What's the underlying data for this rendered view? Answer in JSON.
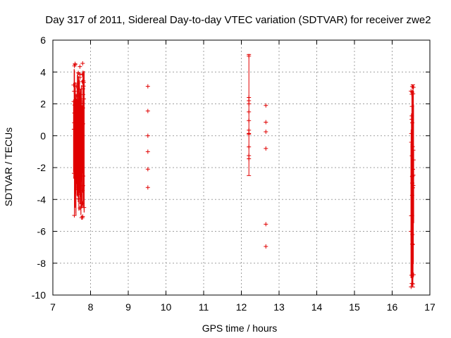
{
  "chart_data": {
    "type": "scatter",
    "title": "Day 317 of 2011, Sidereal Day-to-day VTEC variation (SDTVAR) for receiver zwe2",
    "xlabel": "GPS time / hours",
    "ylabel": "SDTVAR / TECUs",
    "xlim": [
      7,
      17
    ],
    "ylim": [
      -10,
      6
    ],
    "xticks": [
      7,
      8,
      9,
      10,
      11,
      12,
      13,
      14,
      15,
      16,
      17
    ],
    "yticks": [
      -10,
      -8,
      -6,
      -4,
      -2,
      0,
      2,
      4,
      6
    ],
    "grid": true,
    "series_color": "#e00000",
    "clusters": [
      {
        "x_start": 7.55,
        "x_end": 7.83,
        "y_min": -5.2,
        "y_max": 4.6
      },
      {
        "x_start": 16.5,
        "x_end": 16.57,
        "y_min": -9.5,
        "y_max": 3.2
      }
    ],
    "error_bars": [
      {
        "x": 12.2,
        "y_low": -2.5,
        "y_high": 5.1
      },
      {
        "x": 16.55,
        "y_low": -9.5,
        "y_high": 3.2
      }
    ],
    "points": [
      {
        "x": 9.52,
        "y": 3.1
      },
      {
        "x": 9.52,
        "y": 1.55
      },
      {
        "x": 9.52,
        "y": 0.0
      },
      {
        "x": 9.52,
        "y": -1.0
      },
      {
        "x": 9.52,
        "y": -2.1
      },
      {
        "x": 9.52,
        "y": -3.25
      },
      {
        "x": 12.2,
        "y": 5.0
      },
      {
        "x": 12.2,
        "y": 2.4
      },
      {
        "x": 12.2,
        "y": 2.2
      },
      {
        "x": 12.2,
        "y": 2.0
      },
      {
        "x": 12.2,
        "y": 1.5
      },
      {
        "x": 12.2,
        "y": 0.95
      },
      {
        "x": 12.2,
        "y": 0.35
      },
      {
        "x": 12.2,
        "y": 0.15
      },
      {
        "x": 12.2,
        "y": 0.1
      },
      {
        "x": 12.2,
        "y": -0.7
      },
      {
        "x": 12.2,
        "y": -1.25
      },
      {
        "x": 12.2,
        "y": -1.45
      },
      {
        "x": 12.65,
        "y": 1.9
      },
      {
        "x": 12.65,
        "y": 0.85
      },
      {
        "x": 12.65,
        "y": 0.25
      },
      {
        "x": 12.65,
        "y": -0.8
      },
      {
        "x": 12.65,
        "y": -5.55
      },
      {
        "x": 12.65,
        "y": -6.95
      },
      {
        "x": 16.5,
        "y": 2.8
      },
      {
        "x": 16.52,
        "y": 2.6
      },
      {
        "x": 16.5,
        "y": -6.0
      },
      {
        "x": 16.55,
        "y": -9.3
      },
      {
        "x": 7.57,
        "y": -5.0
      }
    ]
  }
}
